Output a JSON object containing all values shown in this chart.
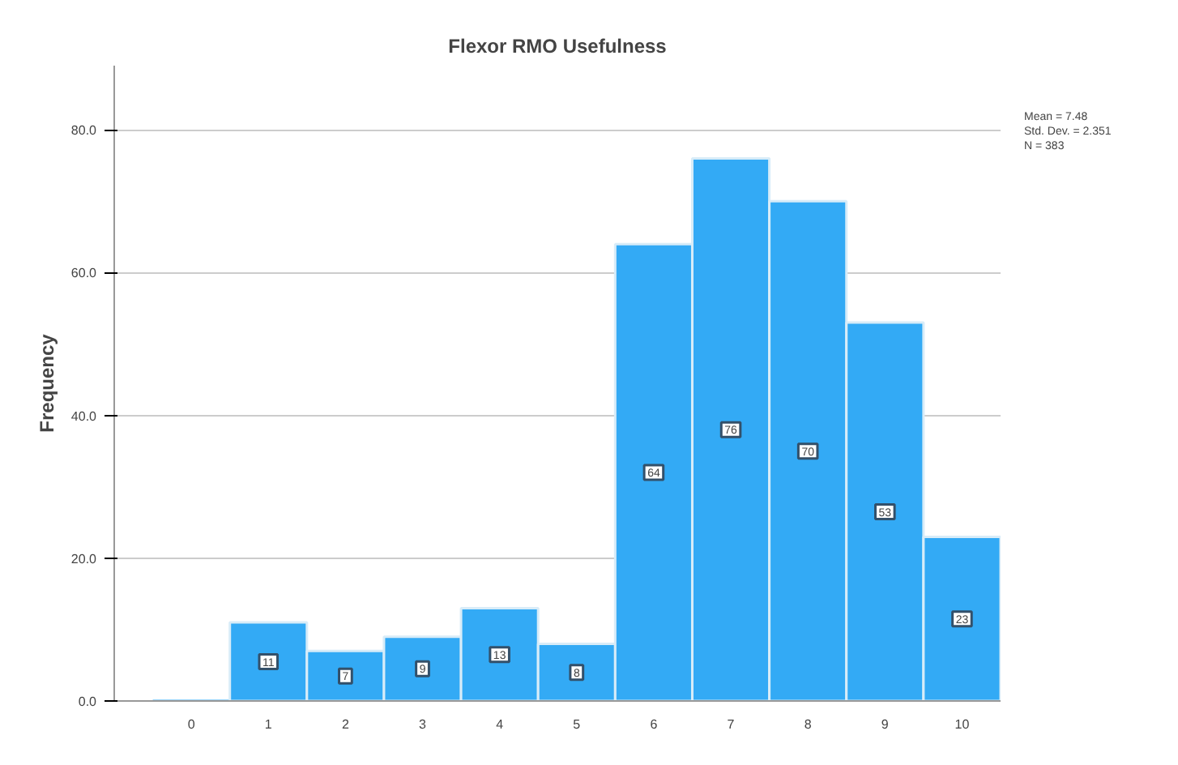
{
  "chart_data": {
    "type": "histogram",
    "title": "Flexor RMO Usefulness",
    "ylabel": "Frequency",
    "bins": [
      -0.5,
      0.5,
      1.5,
      2.5,
      3.5,
      4.5,
      5.5,
      6.5,
      7.5,
      8.5,
      9.5,
      10.5
    ],
    "values": [
      0,
      11,
      7,
      9,
      13,
      8,
      64,
      76,
      70,
      53,
      23
    ],
    "value_labels": [
      null,
      "11",
      "7",
      "9",
      "13",
      "8",
      "64",
      "76",
      "70",
      "53",
      "23"
    ],
    "color": "#33aaf5",
    "xlim": [
      -1,
      10.5
    ],
    "xticks": [
      0,
      1,
      2,
      3,
      4,
      5,
      6,
      7,
      8,
      9,
      10
    ],
    "ylim": [
      0,
      89
    ],
    "yticks": [
      {
        "value": 0,
        "label": "0.0"
      },
      {
        "value": 20,
        "label": "20.0"
      },
      {
        "value": 40,
        "label": "40.0"
      },
      {
        "value": 60,
        "label": "60.0"
      },
      {
        "value": 80,
        "label": "80.0"
      }
    ],
    "grid": "y",
    "annotations": [
      "Mean = 7.48",
      "Std. Dev. = 2.351",
      "N = 383"
    ]
  }
}
